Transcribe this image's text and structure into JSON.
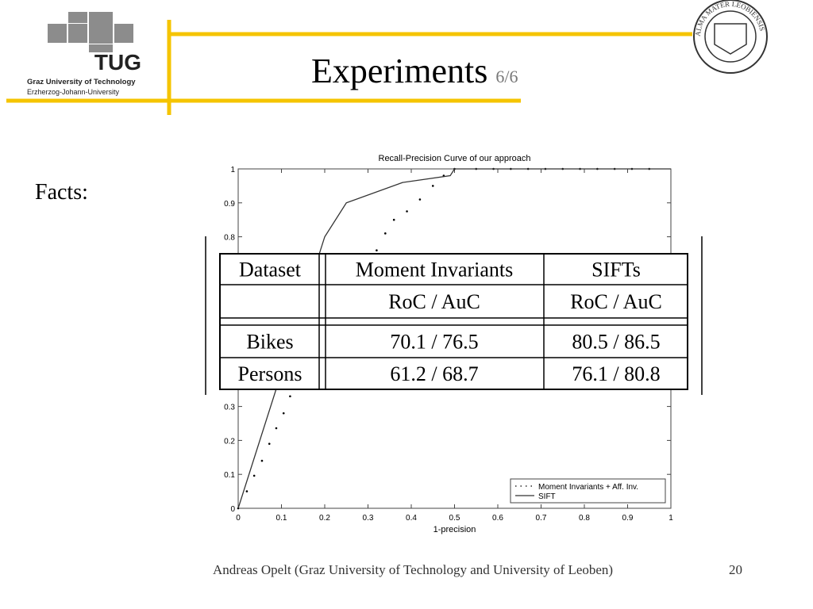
{
  "header": {
    "title": "Experiments",
    "subtitle": "6/6",
    "logo_text": "TUG",
    "university": "Graz University of Technology",
    "university_sub": "Erzherzog-Johann-University",
    "seal_text": "ALMA MATER LEOBIENSIS"
  },
  "body": {
    "label": "Facts:"
  },
  "chart_data": {
    "type": "line",
    "title": "Recall-Precision Curve of our approach",
    "xlabel": "1-precision",
    "xlim": [
      0,
      1
    ],
    "ylim": [
      0,
      1
    ],
    "xticks": [
      0,
      0.1,
      0.2,
      0.3,
      0.4,
      0.5,
      0.6,
      0.7,
      0.8,
      0.9,
      1
    ],
    "yticks": [
      0,
      0.1,
      0.2,
      0.3,
      0.4,
      0.5,
      0.6,
      0.7,
      0.8,
      0.9,
      1
    ],
    "legend": "lower right",
    "series": [
      {
        "name": "Moment Invariants + Aff. Inv.",
        "style": "dots",
        "color": "#000000",
        "x": [
          0,
          0.02,
          0.037,
          0.055,
          0.072,
          0.088,
          0.105,
          0.12,
          0.32,
          0.34,
          0.36,
          0.39,
          0.42,
          0.45,
          0.475,
          0.5,
          0.55,
          0.59,
          0.63,
          0.67,
          0.71,
          0.75,
          0.79,
          0.83,
          0.87,
          0.91,
          0.95
        ],
        "values": [
          0,
          0.05,
          0.096,
          0.14,
          0.19,
          0.236,
          0.28,
          0.33,
          0.76,
          0.81,
          0.85,
          0.875,
          0.91,
          0.95,
          0.98,
          1,
          1,
          1,
          1,
          1,
          1,
          1,
          1,
          1,
          1,
          1,
          1
        ]
      },
      {
        "name": "SIFT",
        "style": "solid",
        "color": "#333333",
        "x": [
          0,
          0.2,
          0.25,
          0.38,
          0.49,
          0.5,
          1
        ],
        "values": [
          0,
          0.8,
          0.9,
          0.96,
          0.98,
          1,
          1
        ]
      }
    ]
  },
  "table": {
    "header": [
      [
        "Dataset",
        "Moment Invariants",
        "SIFTs"
      ],
      [
        null,
        "RoC / AuC",
        "RoC / AuC"
      ]
    ],
    "rows": [
      [
        "Bikes",
        "70.1 / 76.5",
        "80.5 / 86.5"
      ],
      [
        "Persons",
        "61.2 / 68.7",
        "76.1 / 80.8"
      ]
    ]
  },
  "footer": {
    "author": "Andreas Opelt (Graz University of Technology and University of Leoben)",
    "page": "20"
  }
}
